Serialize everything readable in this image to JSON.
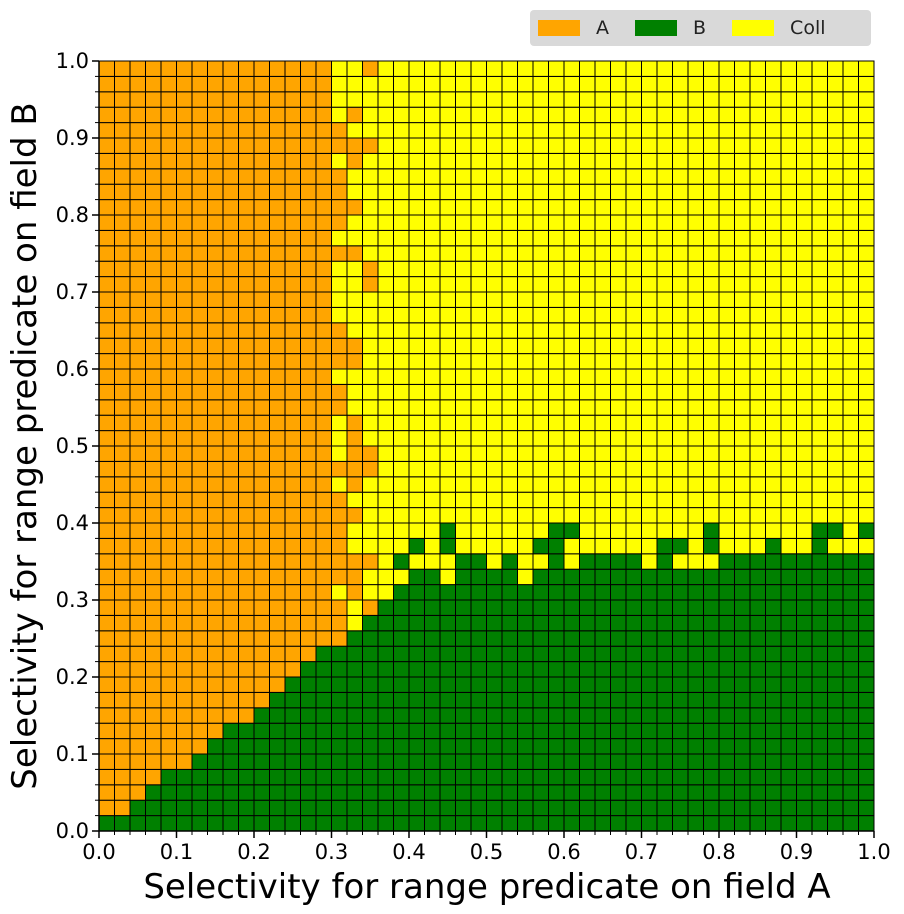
{
  "chart_data": {
    "type": "heatmap",
    "xlabel": "Selectivity for range predicate on field A",
    "ylabel": "Selectivity for range predicate on field B",
    "xlim": [
      0.0,
      1.0
    ],
    "ylim": [
      0.0,
      1.0
    ],
    "x_ticks": [
      "0.0",
      "0.1",
      "0.2",
      "0.3",
      "0.4",
      "0.5",
      "0.6",
      "0.7",
      "0.8",
      "0.9",
      "1.0"
    ],
    "y_ticks": [
      "0.0",
      "0.1",
      "0.2",
      "0.3",
      "0.4",
      "0.5",
      "0.6",
      "0.7",
      "0.8",
      "0.9",
      "1.0"
    ],
    "grid_cells": [
      50,
      50
    ],
    "cell_size": 0.02,
    "legend": {
      "placement": "top-right, above plot",
      "items": [
        {
          "label": "A",
          "color": "#ffa500"
        },
        {
          "label": "B",
          "color": "#008000"
        },
        {
          "label": "Coll",
          "color": "#ffff00"
        }
      ]
    },
    "b_region_upper_y_by_column": [
      0.02,
      0.02,
      0.04,
      0.06,
      0.08,
      0.08,
      0.1,
      0.12,
      0.14,
      0.14,
      0.16,
      0.18,
      0.2,
      0.22,
      0.24,
      0.24,
      0.26,
      0.28,
      0.3,
      0.32,
      0.34,
      0.34,
      0.32,
      0.34,
      0.34,
      0.34,
      0.34,
      0.32,
      0.34,
      0.34,
      0.34,
      0.34,
      0.34,
      0.34,
      0.34,
      0.34,
      0.34,
      0.34,
      0.34,
      0.34,
      0.34,
      0.34,
      0.36,
      0.36,
      0.36,
      0.36,
      0.36,
      0.36,
      0.36,
      0.36
    ],
    "a_region_columns_full": 15,
    "a_coll_boundary_x": 0.32
  }
}
